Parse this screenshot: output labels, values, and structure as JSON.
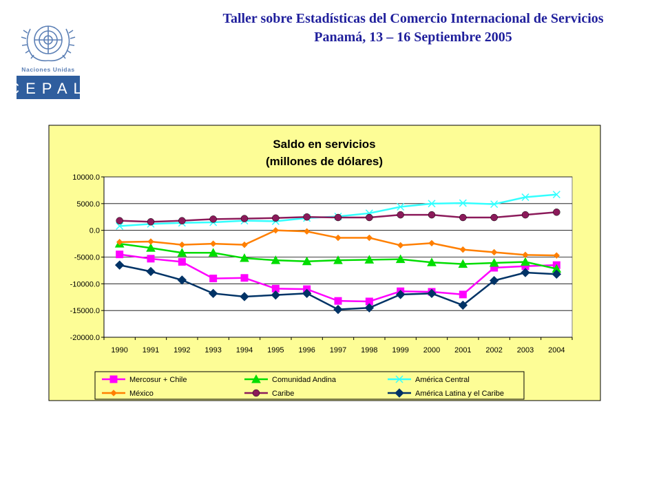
{
  "header": {
    "line1": "Taller sobre Estadísticas del Comercio Internacional de Servicios",
    "line2": "Panamá, 13 – 16 Septiembre 2005"
  },
  "logo": {
    "org": "Naciones Unidas",
    "name": "CEPAL",
    "colors": {
      "emblem": "#5b7fb5",
      "box": "#2f5e9e",
      "text": "#ffffff"
    }
  },
  "chart_data": {
    "type": "line",
    "title": [
      "Saldo en servicios",
      "(millones de dólares)"
    ],
    "x": [
      "1990",
      "1991",
      "1992",
      "1993",
      "1994",
      "1995",
      "1996",
      "1997",
      "1998",
      "1999",
      "2000",
      "2001",
      "2002",
      "2003",
      "2004"
    ],
    "ylim": [
      -20000,
      10000
    ],
    "yticks": [
      10000,
      5000,
      0,
      -5000,
      -10000,
      -15000,
      -20000
    ],
    "ytick_labels": [
      "10000.0",
      "5000.0",
      "0.0",
      "-5000.0",
      "-10000.0",
      "-15000.0",
      "-20000.0"
    ],
    "grid": true,
    "legend_position": "bottom",
    "plot_background": "#ffffff",
    "chart_background": "#fdfd96",
    "series": [
      {
        "name": "Mercosur + Chile",
        "color": "#ff00ff",
        "marker": "square",
        "values": [
          -4500,
          -5300,
          -5900,
          -9000,
          -8900,
          -10900,
          -11000,
          -13200,
          -13300,
          -11400,
          -11500,
          -12000,
          -7000,
          -6700,
          -6500
        ]
      },
      {
        "name": "Comunidad Andina",
        "color": "#00dd00",
        "marker": "triangle",
        "values": [
          -2500,
          -3300,
          -4200,
          -4200,
          -5200,
          -5600,
          -5800,
          -5600,
          -5500,
          -5400,
          -6000,
          -6300,
          -6100,
          -5900,
          -7200
        ]
      },
      {
        "name": "América Central",
        "color": "#33ffff",
        "marker": "x",
        "values": [
          800,
          1200,
          1400,
          1500,
          1800,
          1700,
          2300,
          2600,
          3200,
          4400,
          5000,
          5100,
          4900,
          6200,
          6700
        ]
      },
      {
        "name": "México",
        "color": "#ff7f00",
        "marker": "diamond-small",
        "values": [
          -2200,
          -2100,
          -2700,
          -2500,
          -2700,
          0,
          -200,
          -1400,
          -1400,
          -2800,
          -2400,
          -3600,
          -4100,
          -4600,
          -4700
        ]
      },
      {
        "name": "Caribe",
        "color": "#8b1a5a",
        "marker": "circle",
        "values": [
          1800,
          1600,
          1800,
          2100,
          2200,
          2300,
          2500,
          2400,
          2400,
          2900,
          2900,
          2400,
          2400,
          2900,
          3400
        ]
      },
      {
        "name": "América Latina y el Caribe",
        "color": "#003366",
        "marker": "diamond",
        "values": [
          -6500,
          -7700,
          -9300,
          -11800,
          -12400,
          -12100,
          -11800,
          -14800,
          -14500,
          -12000,
          -11800,
          -14000,
          -9400,
          -7900,
          -8200
        ]
      }
    ]
  }
}
